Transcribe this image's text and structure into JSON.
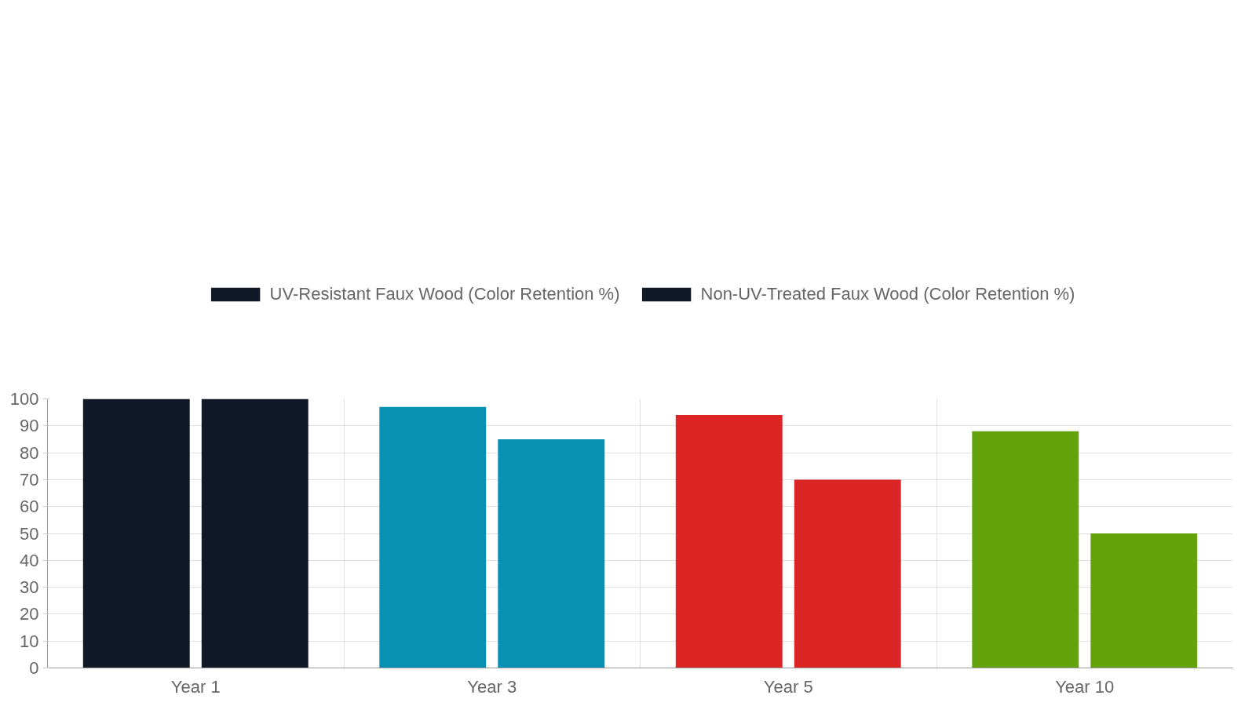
{
  "chart_data": {
    "type": "bar",
    "categories": [
      "Year 1",
      "Year 3",
      "Year 5",
      "Year 10"
    ],
    "series": [
      {
        "name": "UV-Resistant Faux Wood (Color Retention %)",
        "colors": [
          "#111827",
          "#0891b2",
          "#dc2626",
          "#65a30d"
        ],
        "values": [
          100,
          97,
          94,
          88
        ]
      },
      {
        "name": "Non-UV-Treated Faux Wood (Color Retention %)",
        "colors": [
          "#111827",
          "#0891b2",
          "#dc2626",
          "#65a30d"
        ],
        "values": [
          100,
          85,
          70,
          50
        ]
      }
    ],
    "ylim": [
      0,
      100
    ],
    "yticks": [
      0,
      10,
      20,
      30,
      40,
      50,
      60,
      70,
      80,
      90,
      100
    ],
    "grid": true,
    "legend": "top"
  }
}
